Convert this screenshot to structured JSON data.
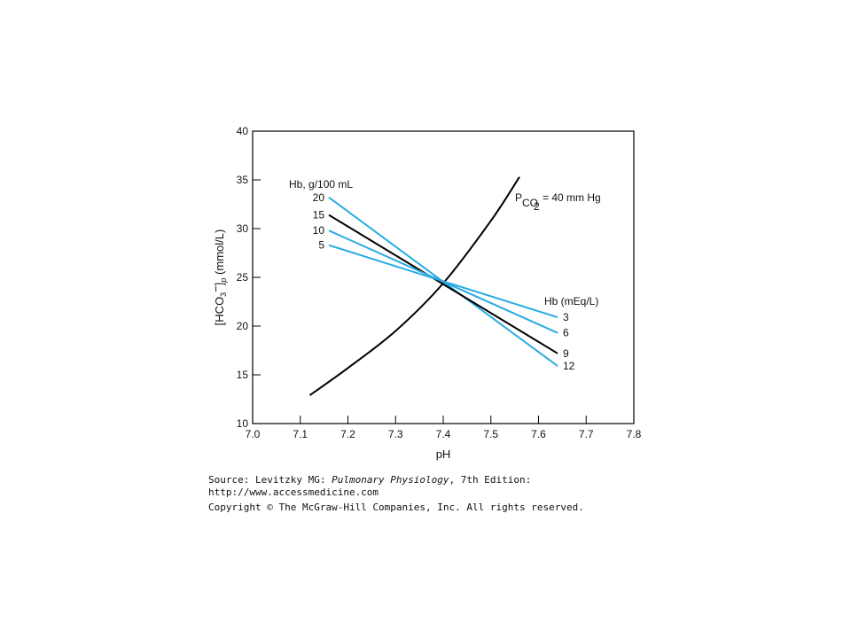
{
  "chart_data": {
    "type": "line",
    "xlabel": "pH",
    "ylabel": "[HCO3−]p (mmol/L)",
    "xlim": [
      7.0,
      7.8
    ],
    "ylim": [
      10,
      40
    ],
    "x_ticks": [
      "7.0",
      "7.1",
      "7.2",
      "7.3",
      "7.4",
      "7.5",
      "7.6",
      "7.7",
      "7.8"
    ],
    "y_ticks": [
      "10",
      "15",
      "20",
      "25",
      "30",
      "35",
      "40"
    ],
    "grid": false,
    "left_group_label": "Hb, g/100 mL",
    "right_group_label": "Hb (mEq/L)",
    "pco2_label": "= 40 mm Hg",
    "colors": {
      "blue": "#29abe2",
      "black": "#000000"
    },
    "buffer_lines": [
      {
        "hb_g": "20",
        "hb_meq": "12",
        "color": "blue",
        "x": [
          7.16,
          7.64
        ],
        "y": [
          33.2,
          15.9
        ]
      },
      {
        "hb_g": "15",
        "hb_meq": "9",
        "color": "black",
        "x": [
          7.16,
          7.64
        ],
        "y": [
          31.4,
          17.2
        ]
      },
      {
        "hb_g": "10",
        "hb_meq": "6",
        "color": "blue",
        "x": [
          7.16,
          7.64
        ],
        "y": [
          29.8,
          19.3
        ]
      },
      {
        "hb_g": "5",
        "hb_meq": "3",
        "color": "blue",
        "x": [
          7.16,
          7.64
        ],
        "y": [
          28.3,
          20.9
        ]
      }
    ],
    "pco2_isobar": {
      "color": "black",
      "x": [
        7.12,
        7.2,
        7.3,
        7.4,
        7.5,
        7.56
      ],
      "y": [
        12.9,
        15.7,
        19.5,
        24.4,
        30.8,
        35.3
      ]
    }
  },
  "source": {
    "line1_prefix": "Source: Levitzky MG: ",
    "book_title": "Pulmonary Physiology",
    "line1_suffix": ", 7th Edition:",
    "url": "http://www.accessmedicine.com",
    "copyright": "Copyright © The McGraw-Hill Companies, Inc. All rights reserved."
  }
}
